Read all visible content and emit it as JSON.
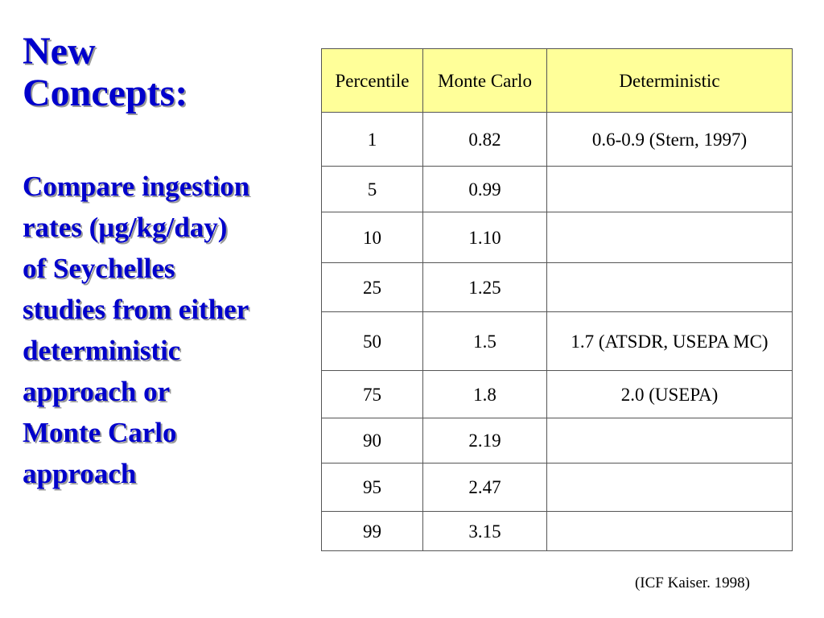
{
  "title": {
    "line1": "New",
    "line2": "Concepts:"
  },
  "subtitle": {
    "lines": [
      "Compare ingestion",
      "rates (µg/kg/day)",
      "of Seychelles",
      "studies from either",
      "deterministic",
      "approach or",
      "Monte Carlo",
      "approach"
    ]
  },
  "table": {
    "headers": [
      "Percentile",
      "Monte Carlo",
      "Deterministic"
    ],
    "header_bg": "#ffff99",
    "rows": [
      {
        "percentile": "1",
        "monte_carlo": "0.82",
        "deterministic": "0.6-0.9 (Stern, 1997)"
      },
      {
        "percentile": "5",
        "monte_carlo": "0.99",
        "deterministic": ""
      },
      {
        "percentile": "10",
        "monte_carlo": "1.10",
        "deterministic": ""
      },
      {
        "percentile": "25",
        "monte_carlo": "1.25",
        "deterministic": ""
      },
      {
        "percentile": "50",
        "monte_carlo": "1.5",
        "deterministic": "1.7 (ATSDR, USEPA MC)"
      },
      {
        "percentile": "75",
        "monte_carlo": "1.8",
        "deterministic": "2.0 (USEPA)"
      },
      {
        "percentile": "90",
        "monte_carlo": "2.19",
        "deterministic": ""
      },
      {
        "percentile": "95",
        "monte_carlo": "2.47",
        "deterministic": ""
      },
      {
        "percentile": "99",
        "monte_carlo": "3.15",
        "deterministic": ""
      }
    ]
  },
  "source_citation": "(ICF Kaiser. 1998)",
  "colors": {
    "title": "#0000cc",
    "background": "#ffffff"
  }
}
